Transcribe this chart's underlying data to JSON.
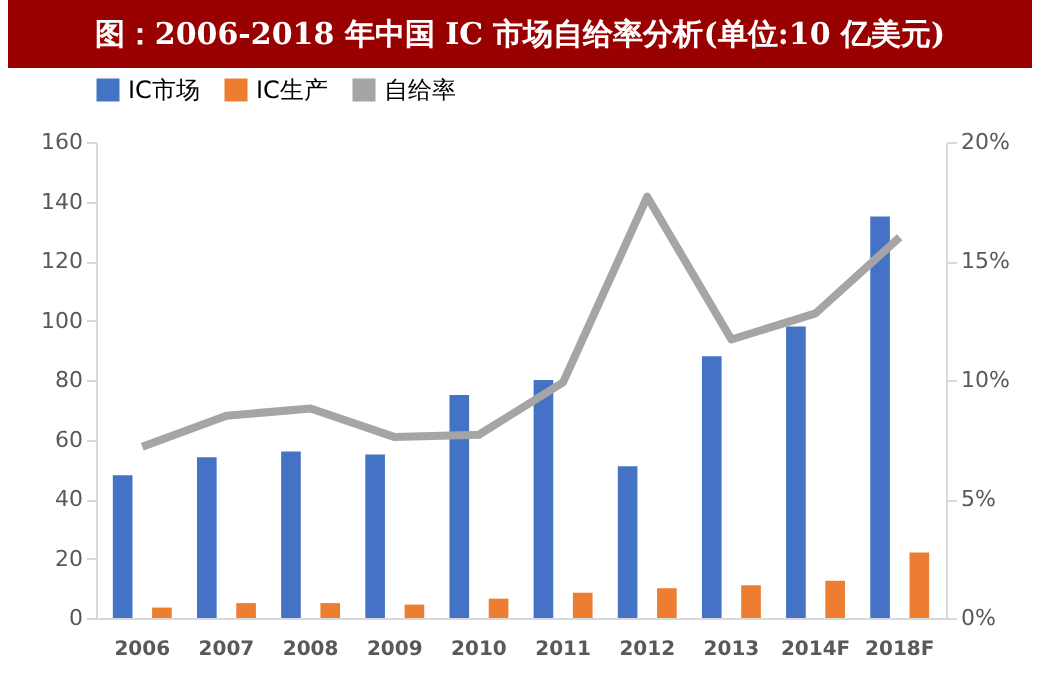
{
  "chart_data": {
    "type": "bar",
    "title": "图：2006-2018 年中国 IC 市场自给率分析(单位:10 亿美元)",
    "categories": [
      "2006",
      "2007",
      "2008",
      "2009",
      "2010",
      "2011",
      "2012",
      "2013",
      "2014F",
      "2018F"
    ],
    "series": [
      {
        "name": "IC市场",
        "color": "#4472c4",
        "values": [
          48,
          54,
          56,
          55,
          75,
          80,
          51,
          88,
          98,
          135
        ]
      },
      {
        "name": "IC生产",
        "color": "#ed7d31",
        "values": [
          3.5,
          5,
          5,
          4.5,
          6.5,
          8.5,
          10,
          11,
          12.5,
          22
        ]
      },
      {
        "name": "自给率",
        "type": "line",
        "axis": "y2",
        "color": "#a5a5a5",
        "values": [
          7.2,
          8.5,
          8.8,
          7.6,
          7.7,
          9.9,
          17.7,
          11.7,
          12.8,
          16.0
        ]
      }
    ],
    "ylim": [
      0,
      160
    ],
    "yticks": [
      0,
      20,
      40,
      60,
      80,
      100,
      120,
      140,
      160
    ],
    "y2lim": [
      0,
      20
    ],
    "y2ticks": [
      {
        "value": 0,
        "label": "0%"
      },
      {
        "value": 5,
        "label": "5%"
      },
      {
        "value": 10,
        "label": "10%"
      },
      {
        "value": 15,
        "label": "15%"
      },
      {
        "value": 20,
        "label": "20%"
      }
    ],
    "grid": false,
    "legend": "top"
  }
}
